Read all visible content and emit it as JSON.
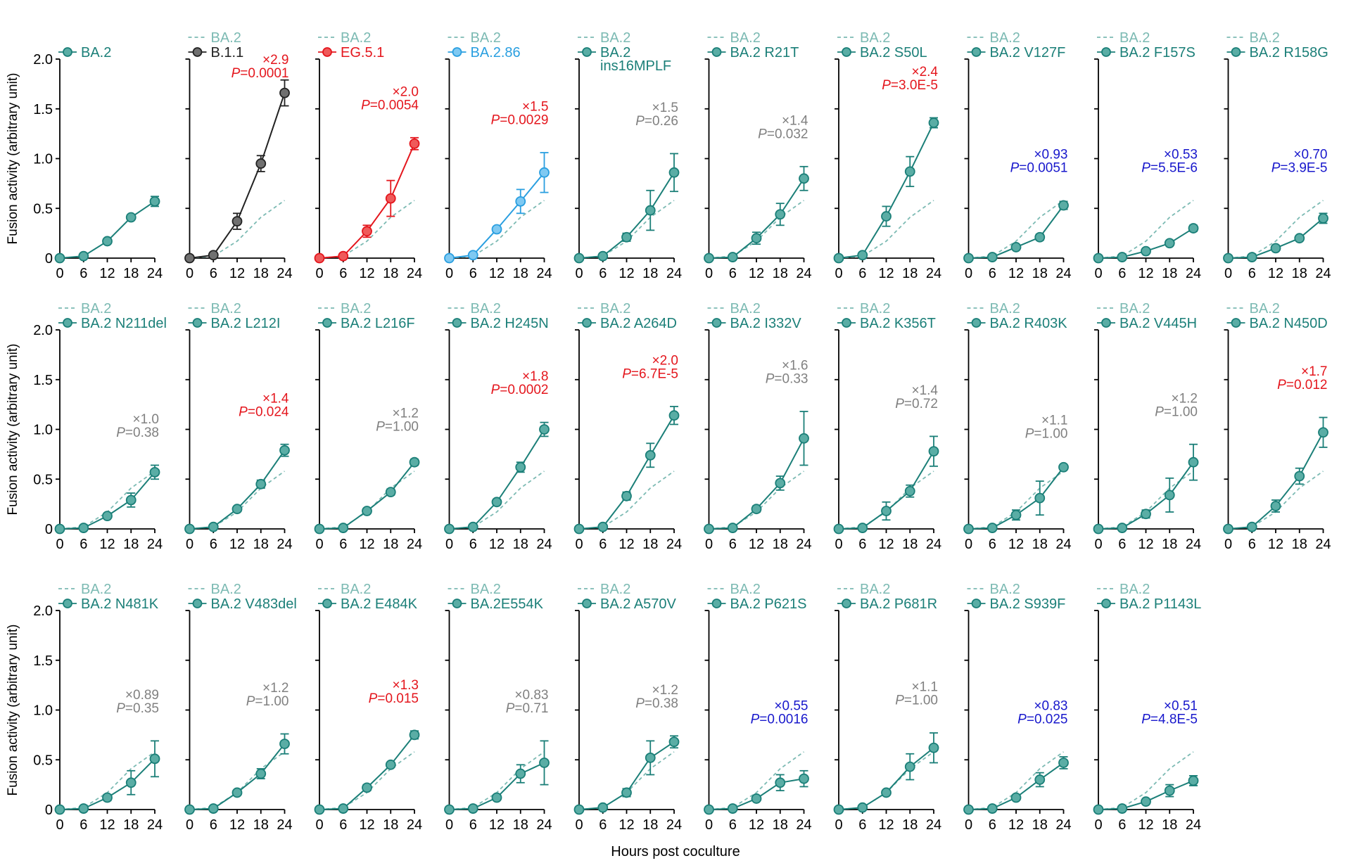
{
  "colors": {
    "teal": "#1b7f78",
    "teal_fill": "#5aada5",
    "baseline": "#7cbab3",
    "black": "#222222",
    "black_fill": "#707070",
    "red": "#e4161d",
    "red_fill": "#ef5a5a",
    "blue_line": "#2a9fe0",
    "blue_fill": "#7fc9f2",
    "sig_up": "#e4161d",
    "sig_down": "#1818cc",
    "ns": "#808080"
  },
  "chart_data": {
    "type": "line",
    "ylabel": "Fusion activity (arbitrary unit)",
    "xlabel": "Hours post coculture",
    "x": [
      0,
      6,
      12,
      18,
      24
    ],
    "ylim": [
      0,
      2.0
    ],
    "yticks": [
      "0",
      "0.5",
      "1.0",
      "1.5",
      "2.0"
    ],
    "baseline_legend": "BA.2",
    "baseline": [
      0,
      0.02,
      0.17,
      0.41,
      0.58
    ],
    "panels": [
      {
        "name": "BA.2",
        "color": "teal",
        "values": [
          0,
          0.02,
          0.17,
          0.41,
          0.57
        ],
        "err": [
          0,
          0,
          0.02,
          0.02,
          0.05
        ],
        "show_baseline": false
      },
      {
        "name": "B.1.1",
        "color": "black",
        "values": [
          0,
          0.03,
          0.37,
          0.95,
          1.66
        ],
        "err": [
          0,
          0,
          0.08,
          0.08,
          0.13
        ],
        "fold": "×2.9",
        "p": "=0.0001",
        "sig": "up"
      },
      {
        "name": "EG.5.1",
        "color": "red",
        "values": [
          0,
          0.02,
          0.27,
          0.6,
          1.15
        ],
        "err": [
          0,
          0,
          0.06,
          0.18,
          0.06
        ],
        "fold": "×2.0",
        "p": "=0.0054",
        "sig": "up"
      },
      {
        "name": "BA.2.86",
        "color": "blue",
        "values": [
          0,
          0.03,
          0.29,
          0.57,
          0.86
        ],
        "err": [
          0,
          0,
          0.02,
          0.12,
          0.2
        ],
        "fold": "×1.5",
        "p": "=0.0029",
        "sig": "up"
      },
      {
        "name": "BA.2",
        "name2": "ins16MPLF",
        "color": "teal",
        "values": [
          0,
          0.02,
          0.21,
          0.48,
          0.86
        ],
        "err": [
          0,
          0,
          0.04,
          0.2,
          0.19
        ],
        "fold": "×1.5",
        "p": "=0.26",
        "sig": "ns"
      },
      {
        "name": "BA.2 R21T",
        "color": "teal",
        "values": [
          0,
          0.01,
          0.2,
          0.44,
          0.8
        ],
        "err": [
          0,
          0,
          0.06,
          0.11,
          0.12
        ],
        "fold": "×1.4",
        "p": "=0.032",
        "sig": "ns"
      },
      {
        "name": "BA.2 S50L",
        "color": "teal",
        "values": [
          0,
          0.03,
          0.42,
          0.87,
          1.36
        ],
        "err": [
          0,
          0,
          0.1,
          0.15,
          0.05
        ],
        "fold": "×2.4",
        "p": "=3.0E-5",
        "sig": "up"
      },
      {
        "name": "BA.2 V127F",
        "color": "teal",
        "values": [
          0,
          0.01,
          0.11,
          0.21,
          0.53
        ],
        "err": [
          0,
          0,
          0.02,
          0.03,
          0.04
        ],
        "fold": "×0.93",
        "p": "=0.0051",
        "sig": "down"
      },
      {
        "name": "BA.2 F157S",
        "color": "teal",
        "values": [
          0,
          0.01,
          0.07,
          0.15,
          0.3
        ],
        "err": [
          0,
          0,
          0.01,
          0.02,
          0.03
        ],
        "fold": "×0.53",
        "p": "=5.5E-6",
        "sig": "down"
      },
      {
        "name": "BA.2 R158G",
        "color": "teal",
        "values": [
          0,
          0.01,
          0.1,
          0.2,
          0.4
        ],
        "err": [
          0,
          0,
          0.01,
          0.02,
          0.05
        ],
        "fold": "×0.70",
        "p": "=3.9E-5",
        "sig": "down"
      },
      {
        "name": "BA.2 N211del",
        "color": "teal",
        "values": [
          0,
          0.01,
          0.13,
          0.29,
          0.57
        ],
        "err": [
          0,
          0,
          0.02,
          0.07,
          0.07
        ],
        "fold": "×1.0",
        "p": "=0.38",
        "sig": "ns"
      },
      {
        "name": "BA.2 L212I",
        "color": "teal",
        "values": [
          0,
          0.02,
          0.2,
          0.45,
          0.79
        ],
        "err": [
          0,
          0,
          0.02,
          0.04,
          0.06
        ],
        "fold": "×1.4",
        "p": "=0.024",
        "sig": "up"
      },
      {
        "name": "BA.2 L216F",
        "color": "teal",
        "values": [
          0,
          0.01,
          0.18,
          0.37,
          0.67
        ],
        "err": [
          0,
          0,
          0.02,
          0.03,
          0.03
        ],
        "fold": "×1.2",
        "p": "=1.00",
        "sig": "ns"
      },
      {
        "name": "BA.2 H245N",
        "color": "teal",
        "values": [
          0,
          0.02,
          0.27,
          0.62,
          1.0
        ],
        "err": [
          0,
          0,
          0.02,
          0.05,
          0.07
        ],
        "fold": "×1.8",
        "p": "=0.0002",
        "sig": "up"
      },
      {
        "name": "BA.2 A264D",
        "color": "teal",
        "values": [
          0,
          0.02,
          0.33,
          0.74,
          1.14
        ],
        "err": [
          0,
          0,
          0.04,
          0.12,
          0.09
        ],
        "fold": "×2.0",
        "p": "=6.7E-5",
        "sig": "up"
      },
      {
        "name": "BA.2 I332V",
        "color": "teal",
        "values": [
          0,
          0.01,
          0.2,
          0.46,
          0.91
        ],
        "err": [
          0,
          0,
          0.03,
          0.07,
          0.27
        ],
        "fold": "×1.6",
        "p": "=0.33",
        "sig": "ns"
      },
      {
        "name": "BA.2 K356T",
        "color": "teal",
        "values": [
          0,
          0.01,
          0.18,
          0.38,
          0.78
        ],
        "err": [
          0,
          0,
          0.09,
          0.06,
          0.15
        ],
        "fold": "×1.4",
        "p": "=0.72",
        "sig": "ns"
      },
      {
        "name": "BA.2 R403K",
        "color": "teal",
        "values": [
          0,
          0.01,
          0.14,
          0.31,
          0.62
        ],
        "err": [
          0,
          0,
          0.05,
          0.17,
          0.01
        ],
        "fold": "×1.1",
        "p": "=1.00",
        "sig": "ns"
      },
      {
        "name": "BA.2 V445H",
        "color": "teal",
        "values": [
          0,
          0.01,
          0.15,
          0.34,
          0.67
        ],
        "err": [
          0,
          0,
          0.04,
          0.17,
          0.18
        ],
        "fold": "×1.2",
        "p": "=1.00",
        "sig": "ns"
      },
      {
        "name": "BA.2 N450D",
        "color": "teal",
        "values": [
          0,
          0.02,
          0.23,
          0.53,
          0.97
        ],
        "err": [
          0,
          0,
          0.06,
          0.08,
          0.15
        ],
        "fold": "×1.7",
        "p": "=0.012",
        "sig": "up"
      },
      {
        "name": "BA.2 N481K",
        "color": "teal",
        "values": [
          0,
          0.01,
          0.12,
          0.27,
          0.51
        ],
        "err": [
          0,
          0,
          0.03,
          0.12,
          0.18
        ],
        "fold": "×0.89",
        "p": "=0.35",
        "sig": "ns"
      },
      {
        "name": "BA.2 V483del",
        "color": "teal",
        "values": [
          0,
          0.01,
          0.17,
          0.36,
          0.66
        ],
        "err": [
          0,
          0,
          0.02,
          0.05,
          0.1
        ],
        "fold": "×1.2",
        "p": "=1.00",
        "sig": "ns"
      },
      {
        "name": "BA.2 E484K",
        "color": "teal",
        "values": [
          0,
          0.01,
          0.22,
          0.45,
          0.75
        ],
        "err": [
          0,
          0,
          0.03,
          0.02,
          0.04
        ],
        "fold": "×1.3",
        "p": "=0.015",
        "sig": "up"
      },
      {
        "name": "BA.2E554K",
        "color": "teal",
        "values": [
          0,
          0.01,
          0.12,
          0.36,
          0.47
        ],
        "err": [
          0,
          0,
          0.01,
          0.09,
          0.22
        ],
        "fold": "×0.83",
        "p": "=0.71",
        "sig": "ns"
      },
      {
        "name": "BA.2 A570V",
        "color": "teal",
        "values": [
          0,
          0.02,
          0.17,
          0.52,
          0.68
        ],
        "err": [
          0,
          0,
          0.04,
          0.17,
          0.06
        ],
        "fold": "×1.2",
        "p": "=0.38",
        "sig": "ns"
      },
      {
        "name": "BA.2 P621S",
        "color": "teal",
        "values": [
          0,
          0.01,
          0.11,
          0.27,
          0.31
        ],
        "err": [
          0,
          0,
          0.01,
          0.08,
          0.08
        ],
        "fold": "×0.55",
        "p": "=0.0016",
        "sig": "down"
      },
      {
        "name": "BA.2 P681R",
        "color": "teal",
        "values": [
          0,
          0.02,
          0.17,
          0.43,
          0.62
        ],
        "err": [
          0,
          0,
          0.01,
          0.13,
          0.15
        ],
        "fold": "×1.1",
        "p": "=1.00",
        "sig": "ns"
      },
      {
        "name": "BA.2 S939F",
        "color": "teal",
        "values": [
          0,
          0.01,
          0.12,
          0.3,
          0.47
        ],
        "err": [
          0,
          0,
          0.02,
          0.07,
          0.06
        ],
        "fold": "×0.83",
        "p": "=0.025",
        "sig": "down"
      },
      {
        "name": "BA.2 P1143L",
        "color": "teal",
        "values": [
          0,
          0.01,
          0.08,
          0.19,
          0.29
        ],
        "err": [
          0,
          0,
          0.02,
          0.06,
          0.05
        ],
        "fold": "×0.51",
        "p": "=4.8E-5",
        "sig": "down"
      }
    ]
  }
}
